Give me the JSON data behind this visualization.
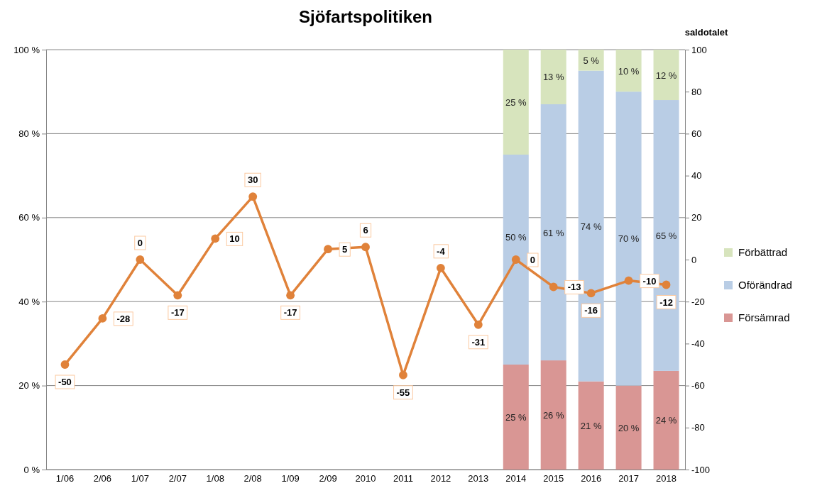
{
  "chart_data": {
    "type": "bar",
    "title": "Sjöfartspolitiken",
    "y2label": "saldotalet",
    "categories": [
      "1/06",
      "2/06",
      "1/07",
      "2/07",
      "1/08",
      "2/08",
      "1/09",
      "2/09",
      "2010",
      "2011",
      "2012",
      "2013",
      "2014",
      "2015",
      "2016",
      "2017",
      "2018"
    ],
    "stacked": true,
    "ylim": [
      0,
      100
    ],
    "yticks": [
      {
        "value": 0,
        "label": "0 %"
      },
      {
        "value": 20,
        "label": "20 %"
      },
      {
        "value": 40,
        "label": "40 %"
      },
      {
        "value": 60,
        "label": "60 %"
      },
      {
        "value": 80,
        "label": "80 %"
      },
      {
        "value": 100,
        "label": "100 %"
      }
    ],
    "y2lim": [
      -100,
      100
    ],
    "y2ticks": [
      -100,
      -80,
      -60,
      -40,
      -20,
      0,
      20,
      40,
      60,
      80,
      100
    ],
    "grid": "y",
    "legend": "right",
    "series": [
      {
        "name": "Försämrad",
        "color": "#d99694",
        "values": [
          null,
          null,
          null,
          null,
          null,
          null,
          null,
          null,
          null,
          null,
          null,
          null,
          25,
          26,
          21,
          20,
          23.5
        ],
        "value_labels": [
          null,
          null,
          null,
          null,
          null,
          null,
          null,
          null,
          null,
          null,
          null,
          null,
          "25 %",
          "26 %",
          "21 %",
          "20 %",
          "24 %"
        ]
      },
      {
        "name": "Oförändrad",
        "color": "#b9cde5",
        "values": [
          null,
          null,
          null,
          null,
          null,
          null,
          null,
          null,
          null,
          null,
          null,
          null,
          50,
          61,
          74,
          70,
          64.5
        ],
        "value_labels": [
          null,
          null,
          null,
          null,
          null,
          null,
          null,
          null,
          null,
          null,
          null,
          null,
          "50 %",
          "61 %",
          "74 %",
          "70 %",
          "65 %"
        ]
      },
      {
        "name": "Förbättrad",
        "color": "#d7e4bd",
        "values": [
          null,
          null,
          null,
          null,
          null,
          null,
          null,
          null,
          null,
          null,
          null,
          null,
          25,
          13,
          5,
          10,
          12
        ],
        "value_labels": [
          null,
          null,
          null,
          null,
          null,
          null,
          null,
          null,
          null,
          null,
          null,
          null,
          "25 %",
          "13 %",
          "5 %",
          "10 %",
          "12 %"
        ]
      },
      {
        "type": "line",
        "axis": "y2",
        "color": "#e0823a",
        "marker": "circle",
        "line_style": "solid",
        "values": [
          -50,
          -28,
          0,
          -17,
          10,
          30,
          -17,
          5,
          6,
          -55,
          -4,
          -31,
          0,
          -13,
          -16,
          -10,
          -12
        ],
        "value_labels": [
          "-50",
          "-28",
          "0",
          "-17",
          "10",
          "30",
          "-17",
          "5",
          "6",
          "-55",
          "-4",
          "-31",
          "0",
          "-13",
          "-16",
          "-10",
          "-12"
        ]
      }
    ]
  }
}
